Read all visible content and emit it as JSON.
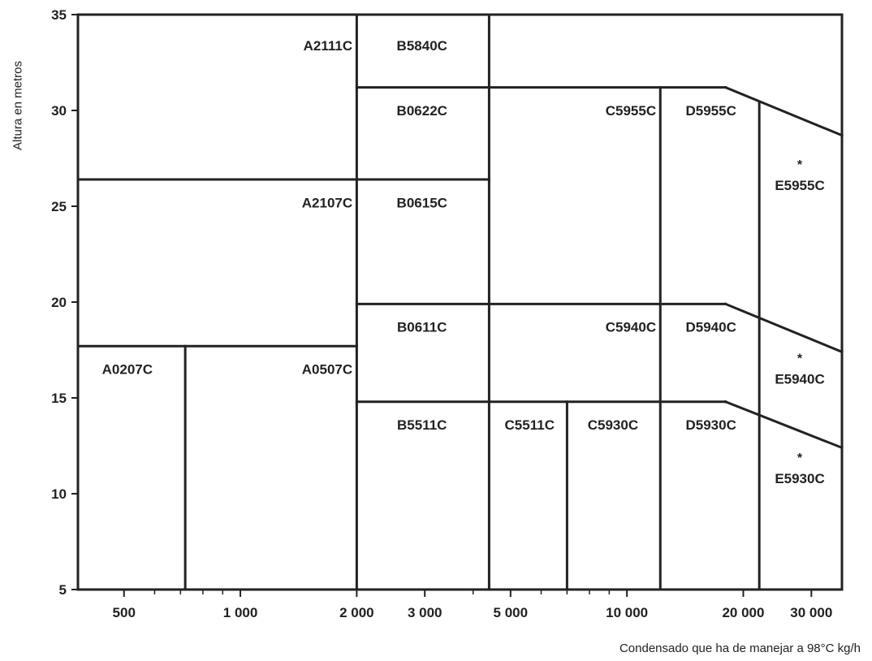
{
  "chart_data": {
    "type": "area",
    "xlabel": "Condensado que ha de manejar a 98°C kg/h",
    "ylabel": "Altura en metros",
    "x_scale": "log",
    "xlim": [
      380,
      36000
    ],
    "ylim": [
      5,
      35
    ],
    "x_ticks": [
      {
        "value": 500,
        "label": "500"
      },
      {
        "value": 1000,
        "label": "1 000"
      },
      {
        "value": 2000,
        "label": "2 000"
      },
      {
        "value": 3000,
        "label": "3 000"
      },
      {
        "value": 5000,
        "label": "5 000"
      },
      {
        "value": 10000,
        "label": "10 000"
      },
      {
        "value": 20000,
        "label": "20 000"
      },
      {
        "value": 30000,
        "label": "30 000"
      }
    ],
    "x_minor_ticks": [
      600,
      700,
      800,
      900,
      4000,
      6000,
      7000,
      8000,
      9000
    ],
    "y_ticks": [
      {
        "value": 5,
        "label": "5"
      },
      {
        "value": 10,
        "label": "10"
      },
      {
        "value": 15,
        "label": "15"
      },
      {
        "value": 20,
        "label": "20"
      },
      {
        "value": 25,
        "label": "25"
      },
      {
        "value": 30,
        "label": "30"
      },
      {
        "value": 35,
        "label": "35"
      }
    ],
    "boundaries": [
      {
        "from": [
          2000,
          5
        ],
        "to": [
          2000,
          35
        ]
      },
      {
        "from": [
          4400,
          5
        ],
        "to": [
          4400,
          35
        ]
      },
      {
        "from": [
          720,
          5
        ],
        "to": [
          720,
          17.7
        ]
      },
      {
        "from": [
          7000,
          5
        ],
        "to": [
          7000,
          14.8
        ]
      },
      {
        "from": [
          12200,
          5
        ],
        "to": [
          12200,
          31.2
        ]
      },
      {
        "from": [
          22000,
          5
        ],
        "to": [
          22000,
          30.4
        ]
      },
      {
        "from": [
          380,
          26.4
        ],
        "to": [
          4400,
          26.4
        ]
      },
      {
        "from": [
          380,
          17.7
        ],
        "to": [
          2000,
          17.7
        ]
      },
      {
        "from": [
          2000,
          31.2
        ],
        "to": [
          18000,
          31.2
        ]
      },
      {
        "from": [
          18000,
          31.2
        ],
        "to": [
          36000,
          28.7
        ]
      },
      {
        "from": [
          2000,
          19.9
        ],
        "to": [
          18000,
          19.9
        ]
      },
      {
        "from": [
          18000,
          19.9
        ],
        "to": [
          36000,
          17.4
        ]
      },
      {
        "from": [
          2000,
          14.8
        ],
        "to": [
          18000,
          14.8
        ]
      },
      {
        "from": [
          18000,
          14.8
        ],
        "to": [
          36000,
          12.4
        ]
      }
    ],
    "regions": [
      {
        "label": "A2111C",
        "x": 1950,
        "y": 33.4,
        "align": "end"
      },
      {
        "label": "A2107C",
        "x": 1950,
        "y": 25.2,
        "align": "end"
      },
      {
        "label": "A0207C",
        "x": 510,
        "y": 16.5,
        "align": "middle"
      },
      {
        "label": "A0507C",
        "x": 1950,
        "y": 16.5,
        "align": "end"
      },
      {
        "label": "B5840C",
        "x": 2950,
        "y": 33.4,
        "align": "middle"
      },
      {
        "label": "B0622C",
        "x": 2950,
        "y": 30.0,
        "align": "middle"
      },
      {
        "label": "B0615C",
        "x": 2950,
        "y": 25.2,
        "align": "middle"
      },
      {
        "label": "B0611C",
        "x": 2950,
        "y": 18.7,
        "align": "middle"
      },
      {
        "label": "B5511C",
        "x": 2950,
        "y": 13.6,
        "align": "middle"
      },
      {
        "label": "C5955C",
        "x": 11900,
        "y": 30.0,
        "align": "end"
      },
      {
        "label": "C5940C",
        "x": 11900,
        "y": 18.7,
        "align": "end"
      },
      {
        "label": "C5511C",
        "x": 5600,
        "y": 13.6,
        "align": "middle"
      },
      {
        "label": "C5930C",
        "x": 9200,
        "y": 13.6,
        "align": "middle"
      },
      {
        "label": "D5955C",
        "x": 16500,
        "y": 30.0,
        "align": "middle"
      },
      {
        "label": "D5940C",
        "x": 16500,
        "y": 18.7,
        "align": "middle"
      },
      {
        "label": "D5930C",
        "x": 16500,
        "y": 13.6,
        "align": "middle"
      },
      {
        "label": "E5955C",
        "x": 28000,
        "y": 26.1,
        "align": "middle",
        "mark": "*"
      },
      {
        "label": "E5940C",
        "x": 28000,
        "y": 16.0,
        "align": "middle",
        "mark": "*"
      },
      {
        "label": "E5930C",
        "x": 28000,
        "y": 10.8,
        "align": "middle",
        "mark": "*"
      }
    ]
  }
}
